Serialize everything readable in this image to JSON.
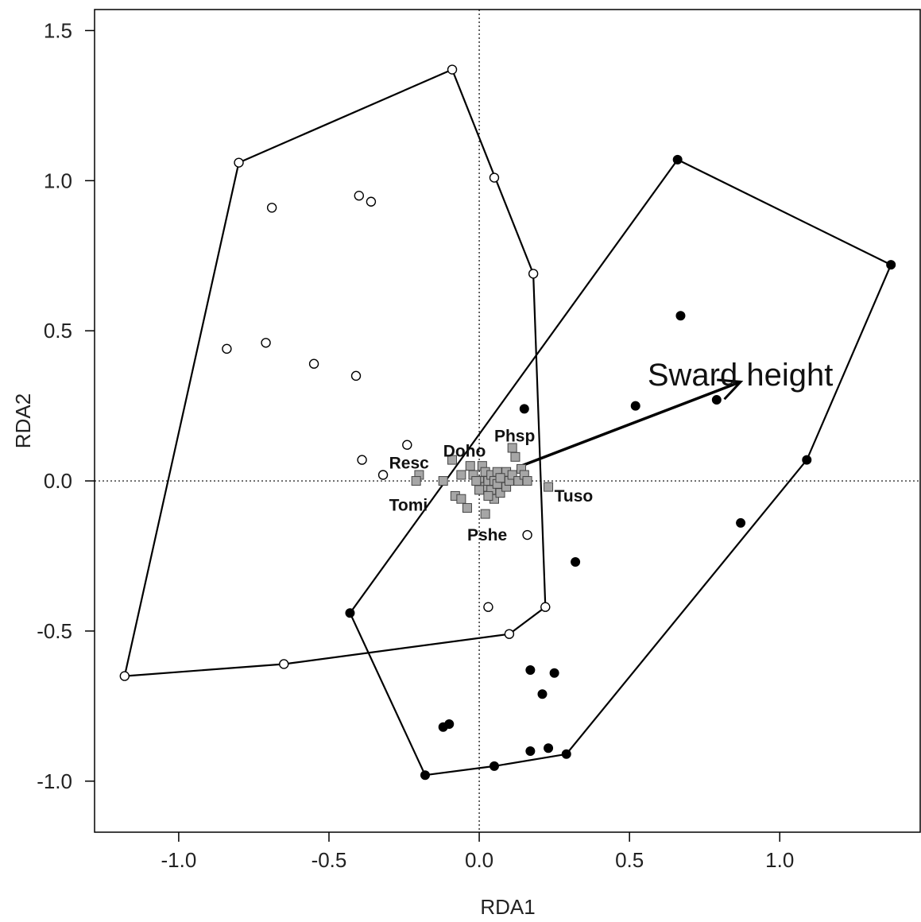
{
  "chart_data": {
    "type": "scatter",
    "xlabel": "RDA1",
    "ylabel": "RDA2",
    "xlim": [
      -1.28,
      1.47
    ],
    "ylim": [
      -1.17,
      1.57
    ],
    "x_ticks": [
      {
        "value": -1.0,
        "label": "-1.0"
      },
      {
        "value": -0.5,
        "label": "-0.5"
      },
      {
        "value": 0.0,
        "label": "0.0"
      },
      {
        "value": 0.5,
        "label": "0.5"
      },
      {
        "value": 1.0,
        "label": "1.0"
      }
    ],
    "y_ticks": [
      {
        "value": -1.0,
        "label": "-1.0"
      },
      {
        "value": -0.5,
        "label": "-0.5"
      },
      {
        "value": 0.0,
        "label": "0.0"
      },
      {
        "value": 0.5,
        "label": "0.5"
      },
      {
        "value": 1.0,
        "label": "1.0"
      },
      {
        "value": 1.5,
        "label": "1.5"
      }
    ],
    "zero_lines": true,
    "grid": false,
    "series": [
      {
        "marker": "open-circle",
        "points": [
          [
            -1.18,
            -0.65
          ],
          [
            -0.8,
            1.06
          ],
          [
            -0.09,
            1.37
          ],
          [
            0.05,
            1.01
          ],
          [
            -0.69,
            0.91
          ],
          [
            -0.4,
            0.95
          ],
          [
            -0.36,
            0.93
          ],
          [
            0.18,
            0.69
          ],
          [
            -0.84,
            0.44
          ],
          [
            -0.71,
            0.46
          ],
          [
            -0.55,
            0.39
          ],
          [
            -0.41,
            0.35
          ],
          [
            -0.24,
            0.12
          ],
          [
            -0.39,
            0.07
          ],
          [
            -0.32,
            0.02
          ],
          [
            0.16,
            -0.18
          ],
          [
            0.03,
            -0.42
          ],
          [
            0.22,
            -0.42
          ],
          [
            0.1,
            -0.51
          ],
          [
            -0.65,
            -0.61
          ]
        ],
        "hull": [
          [
            -1.18,
            -0.65
          ],
          [
            -0.8,
            1.06
          ],
          [
            -0.09,
            1.37
          ],
          [
            0.18,
            0.69
          ],
          [
            0.22,
            -0.42
          ],
          [
            0.1,
            -0.51
          ],
          [
            -0.65,
            -0.61
          ]
        ]
      },
      {
        "marker": "filled-circle",
        "points": [
          [
            0.66,
            1.07
          ],
          [
            1.37,
            0.72
          ],
          [
            0.67,
            0.55
          ],
          [
            0.79,
            0.27
          ],
          [
            0.52,
            0.25
          ],
          [
            0.15,
            0.24
          ],
          [
            1.09,
            0.07
          ],
          [
            0.87,
            -0.14
          ],
          [
            0.32,
            -0.27
          ],
          [
            -0.43,
            -0.44
          ],
          [
            0.17,
            -0.63
          ],
          [
            0.25,
            -0.64
          ],
          [
            0.21,
            -0.71
          ],
          [
            -0.12,
            -0.82
          ],
          [
            -0.1,
            -0.81
          ],
          [
            0.17,
            -0.9
          ],
          [
            0.23,
            -0.89
          ],
          [
            0.29,
            -0.91
          ],
          [
            0.05,
            -0.95
          ],
          [
            -0.18,
            -0.98
          ]
        ],
        "hull": [
          [
            0.66,
            1.07
          ],
          [
            1.37,
            0.72
          ],
          [
            1.09,
            0.07
          ],
          [
            0.29,
            -0.91
          ],
          [
            0.05,
            -0.95
          ],
          [
            -0.18,
            -0.98
          ],
          [
            -0.43,
            -0.44
          ]
        ]
      },
      {
        "marker": "gray-square",
        "points": [
          [
            -0.2,
            0.02
          ],
          [
            -0.21,
            0.0
          ],
          [
            -0.12,
            0.0
          ],
          [
            -0.09,
            0.07
          ],
          [
            -0.08,
            -0.05
          ],
          [
            -0.06,
            -0.06
          ],
          [
            -0.04,
            -0.09
          ],
          [
            -0.06,
            0.02
          ],
          [
            -0.03,
            0.05
          ],
          [
            -0.02,
            0.02
          ],
          [
            0.0,
            0.0
          ],
          [
            0.01,
            -0.02
          ],
          [
            0.01,
            0.05
          ],
          [
            0.02,
            0.03
          ],
          [
            0.02,
            -0.02
          ],
          [
            0.03,
            0.0
          ],
          [
            0.04,
            -0.03
          ],
          [
            0.04,
            0.02
          ],
          [
            0.05,
            -0.06
          ],
          [
            0.05,
            0.0
          ],
          [
            0.06,
            0.03
          ],
          [
            0.06,
            -0.01
          ],
          [
            0.07,
            -0.04
          ],
          [
            0.08,
            0.01
          ],
          [
            0.09,
            -0.02
          ],
          [
            0.09,
            0.03
          ],
          [
            0.1,
            0.0
          ],
          [
            0.11,
            0.02
          ],
          [
            0.13,
            0.0
          ],
          [
            0.14,
            0.04
          ],
          [
            0.15,
            0.02
          ],
          [
            0.11,
            0.11
          ],
          [
            0.12,
            0.08
          ],
          [
            0.16,
            0.0
          ],
          [
            0.23,
            -0.02
          ],
          [
            0.02,
            -0.11
          ],
          [
            -0.01,
            0.0
          ],
          [
            0.0,
            -0.03
          ],
          [
            0.03,
            -0.05
          ],
          [
            0.07,
            0.01
          ]
        ]
      }
    ],
    "species_labels": [
      {
        "text": "Doho",
        "x": -0.12,
        "y": 0.1
      },
      {
        "text": "Phsp",
        "x": 0.05,
        "y": 0.15
      },
      {
        "text": "Resc",
        "x": -0.3,
        "y": 0.06
      },
      {
        "text": "Tomi",
        "x": -0.3,
        "y": -0.08
      },
      {
        "text": "Tuso",
        "x": 0.25,
        "y": -0.05
      },
      {
        "text": "Pshe",
        "x": -0.04,
        "y": -0.18
      }
    ],
    "arrow": {
      "label": "Sward height",
      "from": [
        0.14,
        0.05
      ],
      "to": [
        0.87,
        0.33
      ],
      "label_at": [
        0.56,
        0.35
      ]
    }
  }
}
